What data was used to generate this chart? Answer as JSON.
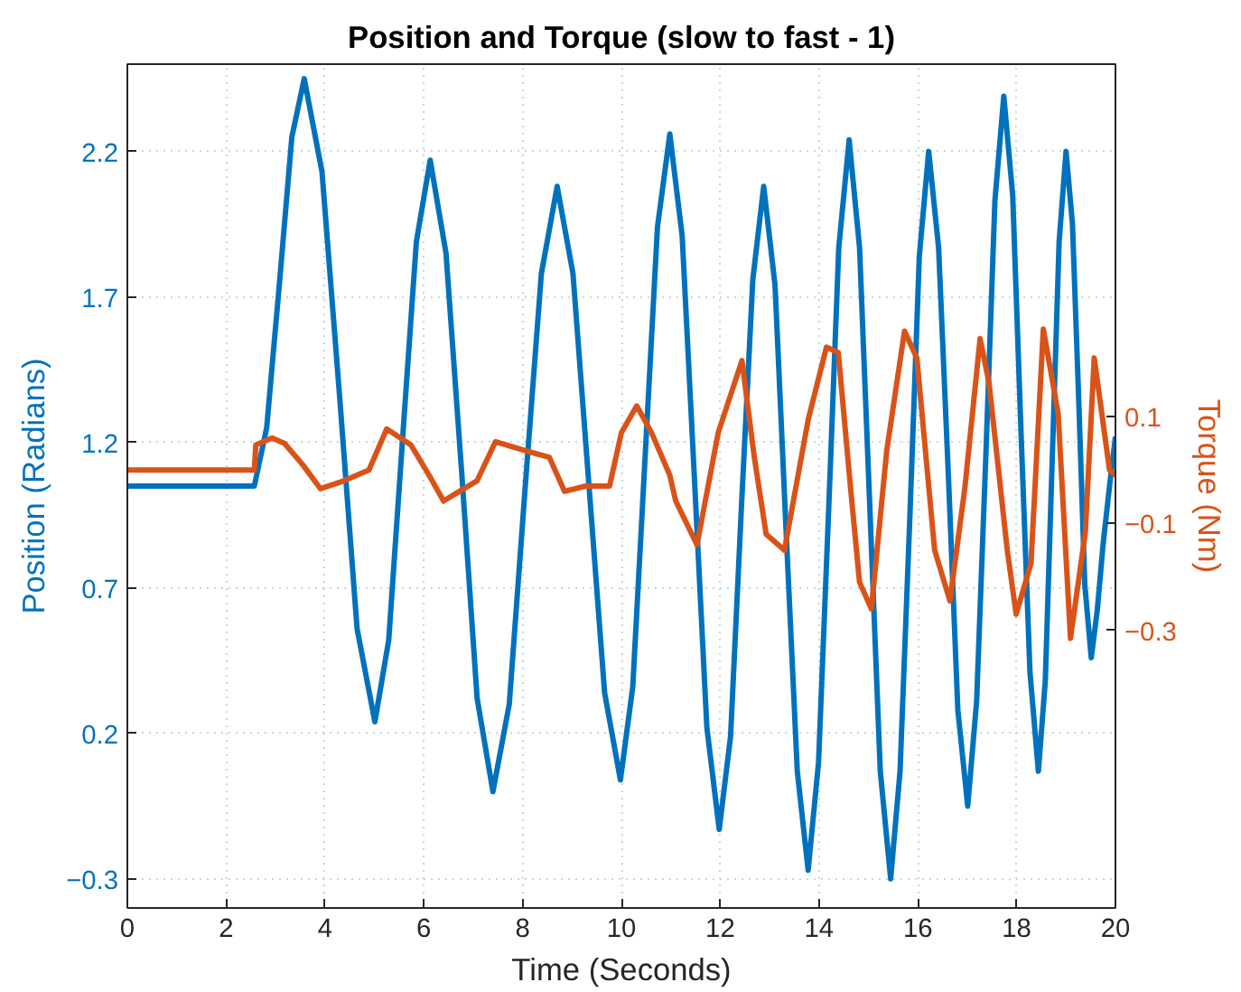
{
  "chart_data": {
    "type": "line",
    "title": "Position and Torque (slow to fast - 1)",
    "xlabel": "Time (Seconds)",
    "ylabel": "Position (Radians)",
    "y2label": "Torque (Nm)",
    "xlim": [
      0,
      20
    ],
    "xticks": [
      0,
      2,
      4,
      6,
      8,
      10,
      12,
      14,
      16,
      18,
      20
    ],
    "ylim": [
      -0.4,
      2.5
    ],
    "yticks": [
      -0.3,
      0.2,
      0.7,
      1.2,
      1.7,
      2.2
    ],
    "y2lim": [
      -0.82,
      0.76
    ],
    "y2ticks": [
      -0.3,
      -0.1,
      0.1
    ],
    "grid": true,
    "line_style": "solid",
    "marker": "none",
    "series": [
      {
        "color": "#0072bd",
        "x": [
          0,
          2.57,
          2.82,
          3.08,
          3.33,
          3.58,
          3.94,
          4.3,
          4.65,
          5.01,
          5.29,
          5.57,
          5.85,
          6.13,
          6.45,
          6.77,
          7.08,
          7.4,
          7.73,
          8.05,
          8.38,
          8.7,
          9.02,
          9.34,
          9.66,
          9.98,
          10.23,
          10.48,
          10.73,
          10.98,
          11.23,
          11.48,
          11.73,
          11.98,
          12.21,
          12.43,
          12.66,
          12.88,
          13.11,
          13.33,
          13.56,
          13.78,
          13.99,
          14.2,
          14.4,
          14.61,
          14.82,
          15.03,
          15.24,
          15.45,
          15.64,
          15.84,
          16.03,
          16.22,
          16.42,
          16.62,
          16.81,
          17.01,
          17.19,
          17.38,
          17.56,
          17.74,
          17.92,
          18.09,
          18.27,
          18.44,
          18.58,
          18.72,
          18.86,
          19.0,
          19.13,
          19.26,
          19.38,
          19.51,
          19.63,
          19.75,
          19.88,
          20.0
        ],
        "values": [
          1.05,
          1.05,
          1.25,
          1.75,
          2.25,
          2.45,
          2.13,
          1.35,
          0.56,
          0.24,
          0.52,
          1.21,
          1.89,
          2.17,
          1.85,
          1.09,
          0.32,
          0.0,
          0.3,
          1.04,
          1.78,
          2.08,
          1.78,
          1.06,
          0.34,
          0.04,
          0.36,
          1.15,
          1.94,
          2.26,
          1.91,
          1.07,
          0.22,
          -0.13,
          0.19,
          0.98,
          1.76,
          2.08,
          1.74,
          0.91,
          0.07,
          -0.27,
          0.1,
          0.99,
          1.87,
          2.24,
          1.87,
          0.97,
          0.07,
          -0.3,
          0.07,
          0.95,
          1.84,
          2.2,
          1.87,
          1.08,
          0.28,
          -0.05,
          0.31,
          1.17,
          2.03,
          2.39,
          2.05,
          1.23,
          0.41,
          0.07,
          0.38,
          1.14,
          1.89,
          2.2,
          1.95,
          1.33,
          0.71,
          0.46,
          0.62,
          0.85,
          1.05,
          1.22
        ]
      },
      {
        "color": "#d95319",
        "axis": "y2",
        "x": [
          0,
          2.57,
          2.6,
          2.93,
          3.18,
          3.55,
          3.91,
          4.39,
          4.89,
          5.25,
          5.74,
          6.11,
          6.4,
          7.08,
          7.45,
          8.06,
          8.54,
          8.85,
          9.28,
          9.76,
          10.0,
          10.31,
          10.61,
          10.98,
          11.1,
          11.53,
          11.96,
          12.44,
          12.69,
          12.93,
          13.3,
          13.78,
          14.15,
          14.39,
          14.64,
          14.82,
          15.06,
          15.37,
          15.73,
          15.98,
          16.34,
          16.65,
          16.95,
          17.26,
          17.44,
          17.81,
          17.99,
          18.29,
          18.54,
          18.84,
          19.09,
          19.39,
          19.57,
          19.88,
          20.0
        ],
        "values": [
          0.0,
          0.0,
          0.047,
          0.06,
          0.05,
          0.01,
          -0.035,
          -0.02,
          0.0,
          0.077,
          0.047,
          -0.01,
          -0.058,
          -0.02,
          0.053,
          0.036,
          0.024,
          -0.04,
          -0.03,
          -0.03,
          0.07,
          0.12,
          0.07,
          -0.01,
          -0.058,
          -0.14,
          0.07,
          0.205,
          0.024,
          -0.12,
          -0.15,
          0.094,
          0.23,
          0.22,
          -0.035,
          -0.21,
          -0.26,
          0.036,
          0.26,
          0.21,
          -0.15,
          -0.245,
          -0.035,
          0.246,
          0.164,
          -0.15,
          -0.27,
          -0.175,
          0.264,
          0.106,
          -0.315,
          -0.117,
          0.21,
          0.0,
          -0.01
        ]
      }
    ]
  }
}
